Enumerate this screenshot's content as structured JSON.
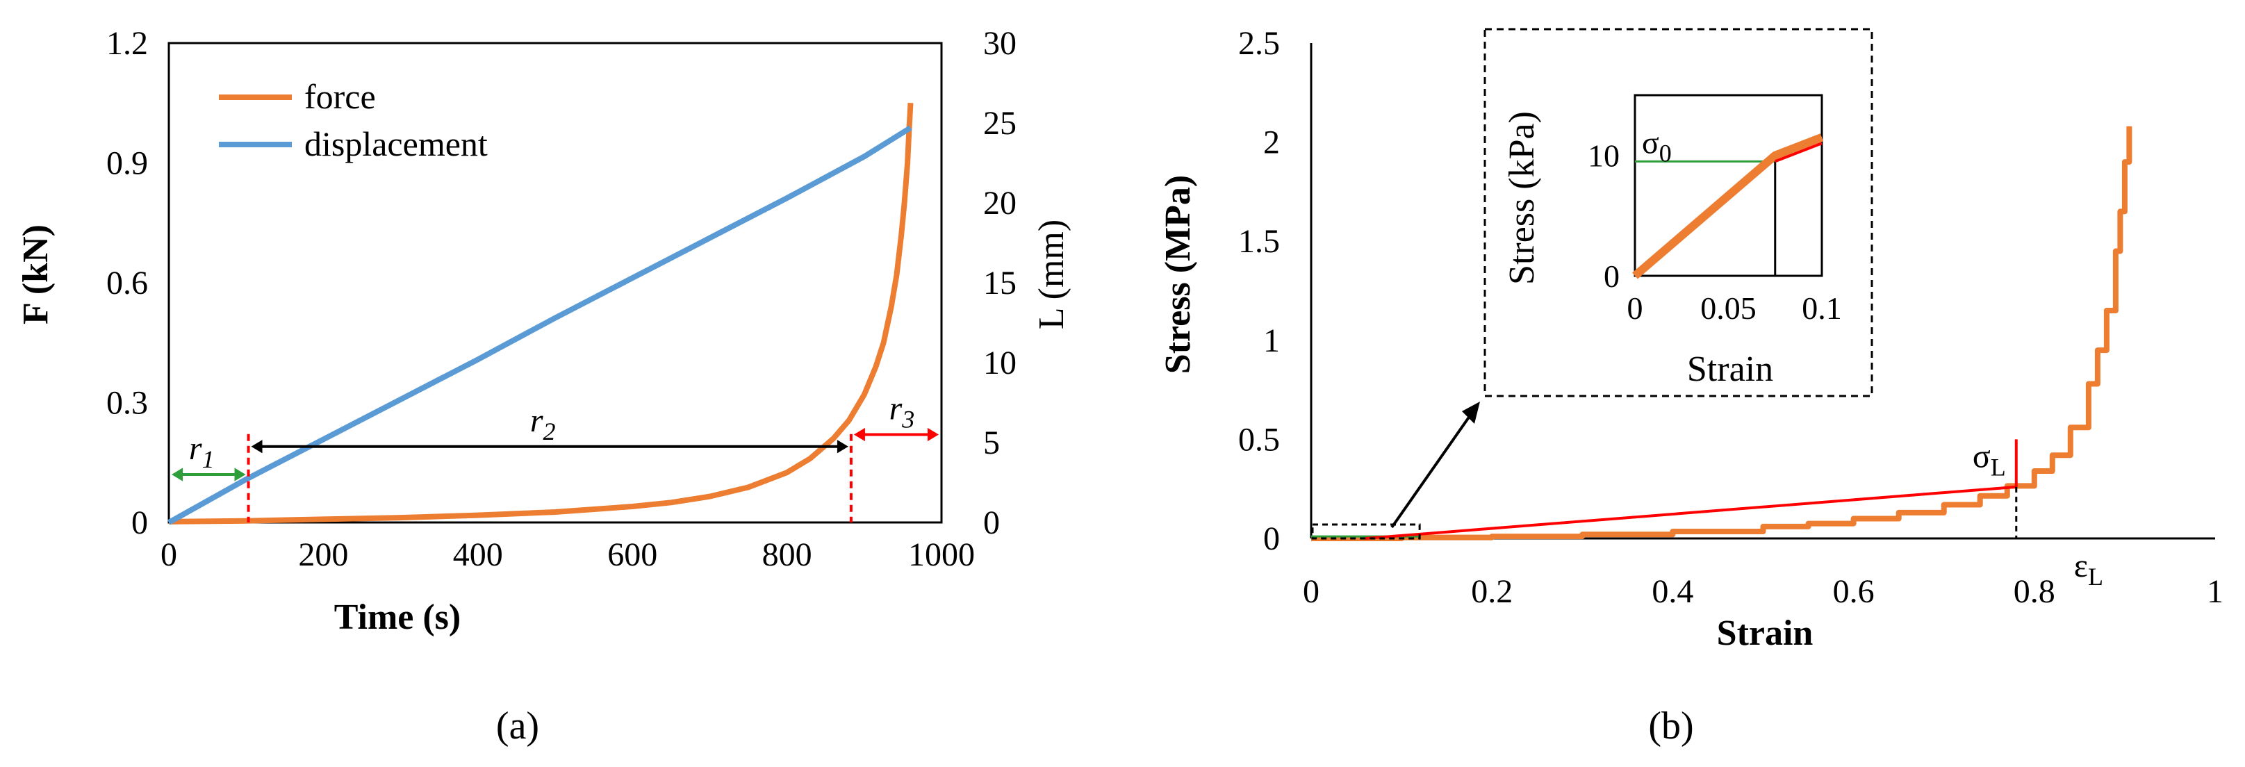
{
  "colors": {
    "force": "#ED7D31",
    "displacement": "#5B9BD5",
    "red": "#FF0000",
    "green": "#2E9E3A",
    "black": "#000000"
  },
  "chart_data": [
    {
      "type": "line",
      "panel_label": "(a)",
      "xlabel": "Time  (s)",
      "ylabel": "F (kN)",
      "y2label": "L (mm)",
      "xlim": [
        0,
        1000
      ],
      "ylim": [
        0,
        1.2
      ],
      "y2lim": [
        0,
        30
      ],
      "xticks": [
        "0",
        "200",
        "400",
        "600",
        "800",
        "1000"
      ],
      "yticks": [
        "0",
        "0.3",
        "0.6",
        "0.9",
        "1.2"
      ],
      "y2ticks": [
        "0",
        "5",
        "10",
        "15",
        "20",
        "25",
        "30"
      ],
      "legend": [
        "force",
        "displacement"
      ],
      "legend_position": "top-left",
      "series": [
        {
          "name": "force",
          "axis": "left",
          "x": [
            0,
            100,
            200,
            300,
            400,
            500,
            600,
            650,
            700,
            750,
            800,
            830,
            860,
            880,
            900,
            915,
            925,
            935,
            942,
            948,
            952,
            956,
            958,
            960
          ],
          "y": [
            0.002,
            0.004,
            0.008,
            0.012,
            0.018,
            0.026,
            0.04,
            0.05,
            0.065,
            0.088,
            0.125,
            0.16,
            0.21,
            0.255,
            0.32,
            0.39,
            0.45,
            0.54,
            0.62,
            0.72,
            0.8,
            0.9,
            0.98,
            1.05
          ]
        },
        {
          "name": "displacement",
          "axis": "right",
          "x": [
            0,
            100,
            200,
            300,
            400,
            500,
            600,
            700,
            800,
            900,
            960
          ],
          "y": [
            0,
            2.7,
            5.2,
            7.7,
            10.2,
            12.8,
            15.3,
            17.8,
            20.3,
            22.9,
            24.7
          ]
        }
      ],
      "region_markers_x": [
        103,
        883
      ],
      "annotations": [
        {
          "label": "r",
          "sub": "1",
          "color": "green",
          "x_from": 0,
          "x_to": 103,
          "y": 0.12
        },
        {
          "label": "r",
          "sub": "2",
          "color": "black",
          "x_from": 103,
          "x_to": 883,
          "y": 0.19
        },
        {
          "label": "r",
          "sub": "3",
          "color": "red",
          "x_from": 883,
          "x_to": 1000,
          "y": 0.22
        }
      ]
    },
    {
      "type": "line",
      "panel_label": "(b)",
      "xlabel": "Strain",
      "ylabel": "Stress (MPa)",
      "xlim": [
        0,
        1
      ],
      "ylim": [
        0,
        2.5
      ],
      "xticks": [
        "0",
        "0.2",
        "0.4",
        "0.6",
        "0.8",
        "1"
      ],
      "yticks": [
        "0",
        "0.5",
        "1",
        "1.5",
        "2",
        "2.5"
      ],
      "series": [
        {
          "name": "stress-strain",
          "x": [
            0,
            0.1,
            0.2,
            0.3,
            0.4,
            0.5,
            0.55,
            0.6,
            0.65,
            0.7,
            0.74,
            0.77,
            0.8,
            0.82,
            0.84,
            0.86,
            0.87,
            0.88,
            0.89,
            0.895,
            0.9,
            0.905
          ],
          "y": [
            0,
            0.005,
            0.01,
            0.02,
            0.035,
            0.06,
            0.075,
            0.1,
            0.13,
            0.17,
            0.215,
            0.265,
            0.34,
            0.42,
            0.56,
            0.78,
            0.95,
            1.15,
            1.45,
            1.65,
            1.9,
            2.08
          ]
        }
      ],
      "secant_line": {
        "x": [
          0.06,
          0.78
        ],
        "y": [
          0,
          0.26
        ]
      },
      "sigma_L_marker": {
        "x": 0.78,
        "y_top": 0.5
      },
      "annotations": {
        "sigma_L": "σ",
        "sigma_L_sub": "L",
        "epsilon_L": "ε",
        "epsilon_L_sub": "L"
      },
      "zoom_box": {
        "x": [
          0,
          0.12
        ],
        "y": [
          0,
          0.07
        ]
      },
      "inset": {
        "xlabel": "Strain",
        "ylabel": "Stress (kPa)",
        "xlim": [
          0,
          0.1
        ],
        "ylim": [
          0,
          15
        ],
        "xticks": [
          "0",
          "0.05",
          "0.1"
        ],
        "yticks": [
          "0",
          "10"
        ],
        "sigma0_label": "σ",
        "sigma0_sub": "0",
        "sigma0_value": 9.5,
        "marker_x": 0.075,
        "series": [
          {
            "name": "orange",
            "x": [
              0,
              0.075,
              0.1
            ],
            "y": [
              0,
              10,
              11.5
            ]
          },
          {
            "name": "red",
            "x": [
              0.075,
              0.1
            ],
            "y": [
              9.5,
              11
            ]
          }
        ]
      }
    }
  ]
}
